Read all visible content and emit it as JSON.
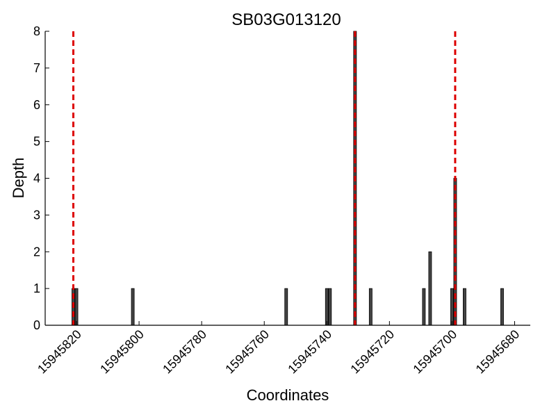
{
  "chart_data": {
    "type": "bar",
    "title": "SB03G013120",
    "xlabel": "Coordinates",
    "ylabel": "Depth",
    "x_inverted": true,
    "xlim": [
      15945830,
      15945675
    ],
    "ylim": [
      0,
      8
    ],
    "grid": false,
    "x_ticks": [
      15945820,
      15945800,
      15945780,
      15945760,
      15945740,
      15945720,
      15945700,
      15945680
    ],
    "x_tick_labels": [
      "15945820",
      "15945800",
      "15945780",
      "15945760",
      "15945740",
      "15945720",
      "15945700",
      "15945680"
    ],
    "y_ticks": [
      0,
      1,
      2,
      3,
      4,
      5,
      6,
      7,
      8
    ],
    "y_tick_labels": [
      "0",
      "1",
      "2",
      "3",
      "4",
      "5",
      "6",
      "7",
      "8"
    ],
    "bar_color": "#444444",
    "bars": [
      {
        "x": 15945821,
        "y": 1
      },
      {
        "x": 15945820,
        "y": 1
      },
      {
        "x": 15945802,
        "y": 1
      },
      {
        "x": 15945753,
        "y": 1
      },
      {
        "x": 15945740,
        "y": 1
      },
      {
        "x": 15945739,
        "y": 1
      },
      {
        "x": 15945731,
        "y": 8
      },
      {
        "x": 15945726,
        "y": 1
      },
      {
        "x": 15945709,
        "y": 1
      },
      {
        "x": 15945707,
        "y": 2
      },
      {
        "x": 15945700,
        "y": 1
      },
      {
        "x": 15945699,
        "y": 4
      },
      {
        "x": 15945696,
        "y": 1
      },
      {
        "x": 15945684,
        "y": 1
      }
    ],
    "markers": {
      "color": "#dd0000",
      "style": "dashed",
      "x": [
        15945821,
        15945731,
        15945699
      ]
    }
  }
}
